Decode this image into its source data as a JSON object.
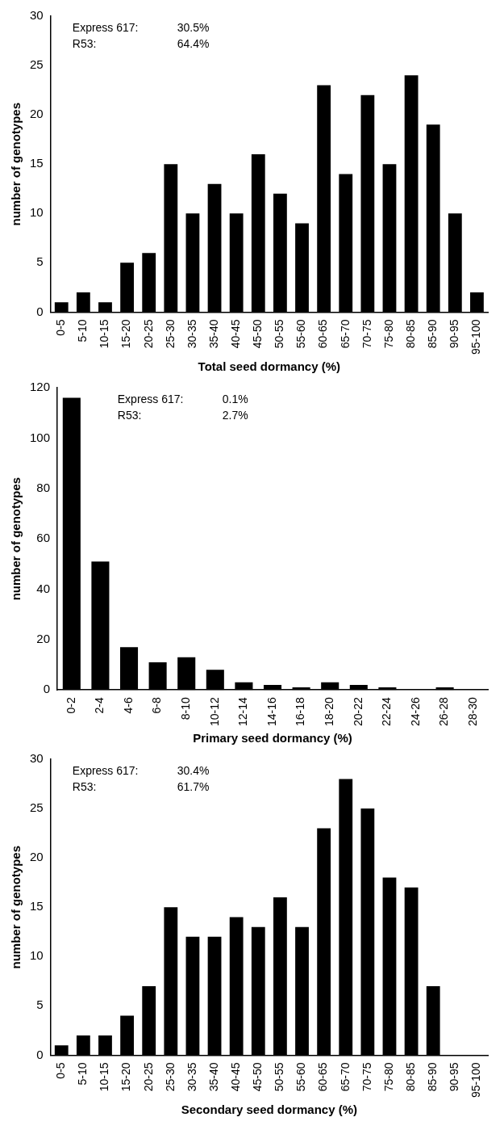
{
  "chart_data": [
    {
      "type": "bar",
      "xlabel": "Total seed dormancy (%)",
      "ylabel": "number of genotypes",
      "categories": [
        "0-5",
        "5-10",
        "10-15",
        "15-20",
        "20-25",
        "25-30",
        "30-35",
        "35-40",
        "40-45",
        "45-50",
        "50-55",
        "55-60",
        "60-65",
        "65-70",
        "70-75",
        "75-80",
        "80-85",
        "85-90",
        "90-95",
        "95-100"
      ],
      "values": [
        1,
        2,
        1,
        5,
        6,
        15,
        10,
        13,
        10,
        16,
        12,
        9,
        23,
        14,
        22,
        15,
        24,
        19,
        10,
        2
      ],
      "color": "#000000",
      "ylim": [
        0,
        30
      ],
      "yticks": [
        0,
        5,
        10,
        15,
        20,
        25,
        30
      ],
      "grid": false,
      "legend": false,
      "annotations": [
        "Express 617:",
        "30.5%",
        "R53:",
        "64.4%"
      ]
    },
    {
      "type": "bar",
      "xlabel": "Primary seed dormancy (%)",
      "ylabel": "number of genotypes",
      "categories": [
        "0-2",
        "2-4",
        "4-6",
        "6-8",
        "8-10",
        "10-12",
        "12-14",
        "14-16",
        "16-18",
        "18-20",
        "20-22",
        "22-24",
        "24-26",
        "26-28",
        "28-30"
      ],
      "values": [
        116,
        51,
        17,
        11,
        13,
        8,
        3,
        2,
        1,
        3,
        2,
        1,
        0,
        1,
        0
      ],
      "color": "#000000",
      "ylim": [
        0,
        120
      ],
      "yticks": [
        0,
        20,
        40,
        60,
        80,
        100,
        120
      ],
      "grid": false,
      "legend": false,
      "annotations": [
        "Express 617:",
        "0.1%",
        "R53:",
        "2.7%"
      ]
    },
    {
      "type": "bar",
      "xlabel": "Secondary seed dormancy (%)",
      "ylabel": "number of genotypes",
      "categories": [
        "0-5",
        "5-10",
        "10-15",
        "15-20",
        "20-25",
        "25-30",
        "30-35",
        "35-40",
        "40-45",
        "45-50",
        "50-55",
        "55-60",
        "60-65",
        "65-70",
        "70-75",
        "75-80",
        "80-85",
        "85-90",
        "90-95",
        "95-100"
      ],
      "values": [
        1,
        2,
        2,
        4,
        7,
        15,
        12,
        12,
        14,
        13,
        16,
        13,
        23,
        28,
        25,
        18,
        17,
        7,
        0,
        0
      ],
      "color": "#000000",
      "ylim": [
        0,
        30
      ],
      "yticks": [
        0,
        5,
        10,
        15,
        20,
        25,
        30
      ],
      "grid": false,
      "legend": false,
      "annotations": [
        "Express 617:",
        "30.4%",
        "R53:",
        "61.7%"
      ]
    }
  ]
}
